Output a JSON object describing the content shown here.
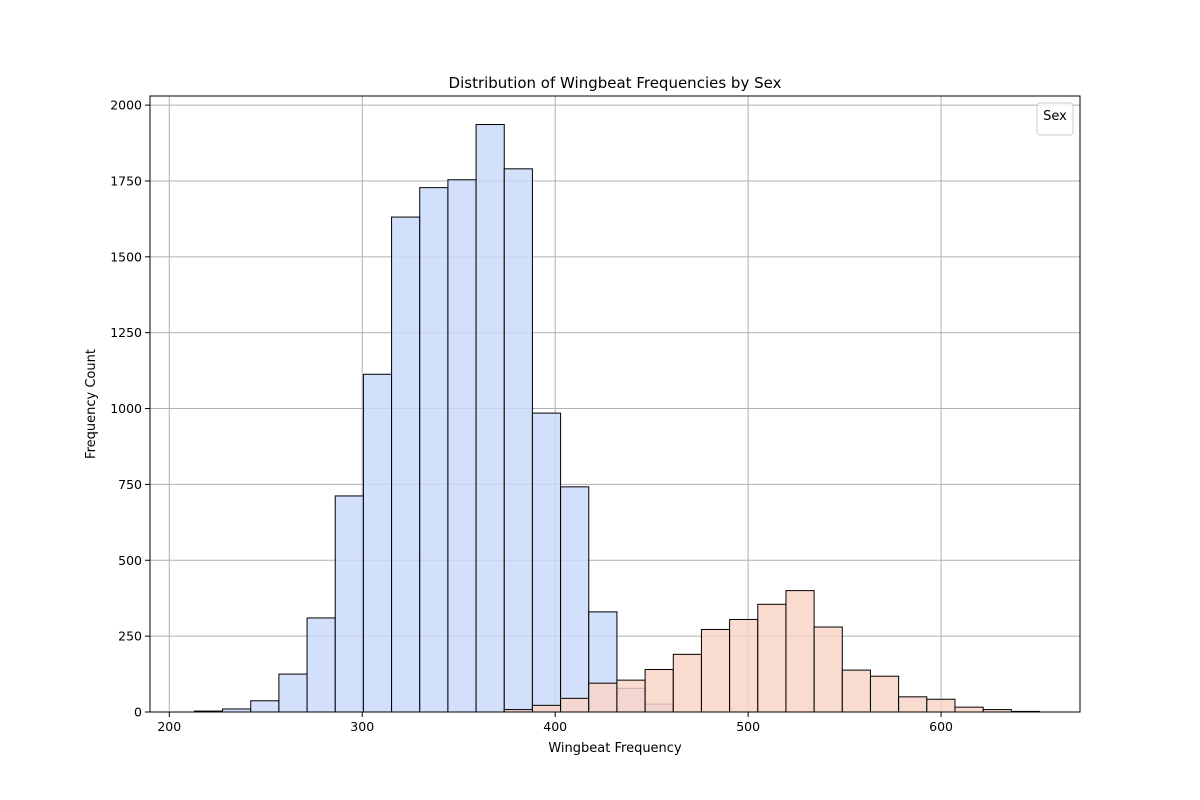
{
  "chart_data": {
    "type": "bar",
    "title": "Distribution of Wingbeat Frequencies by Sex",
    "xlabel": "Wingbeat Frequency",
    "ylabel": "Frequency Count",
    "xlim": [
      190,
      672
    ],
    "ylim": [
      0,
      2030
    ],
    "xticks": [
      200,
      300,
      400,
      500,
      600
    ],
    "yticks": [
      0,
      250,
      500,
      750,
      1000,
      1250,
      1500,
      1750,
      2000
    ],
    "grid": true,
    "legend": {
      "title": "Sex",
      "location": "top-right",
      "entries": []
    },
    "series": [
      {
        "color": "#c9d9fb",
        "bin_edges": [
          213,
          227.6,
          242.2,
          256.8,
          271.4,
          286,
          300.6,
          315.2,
          329.8,
          344.4,
          359,
          373.6,
          388.2,
          402.8,
          417.4,
          432,
          446.6,
          461.2
        ],
        "counts": [
          3,
          10,
          37,
          125,
          310,
          712,
          1113,
          1631,
          1728,
          1754,
          1936,
          1790,
          985,
          742,
          330,
          78,
          26
        ]
      },
      {
        "color": "#f9d3c5",
        "bin_edges": [
          373.6,
          388.2,
          402.8,
          417.4,
          432,
          446.6,
          461.2,
          475.8,
          490.4,
          505,
          519.6,
          534.2,
          548.8,
          563.4,
          578,
          592.6,
          607.2,
          621.8,
          636.4,
          651
        ],
        "counts": [
          8,
          22,
          45,
          95,
          105,
          140,
          190,
          272,
          305,
          355,
          400,
          280,
          138,
          118,
          50,
          42,
          16,
          8,
          2
        ]
      }
    ]
  }
}
